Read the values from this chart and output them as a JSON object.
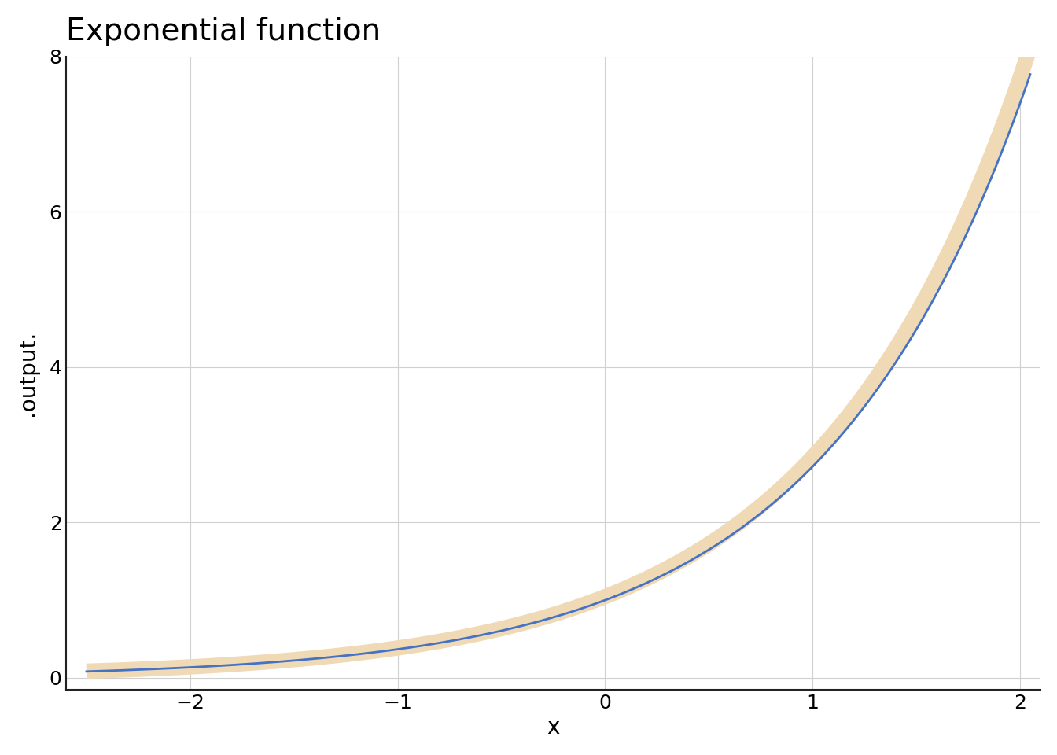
{
  "title": "Exponential function",
  "xlabel": "x",
  "ylabel": ".output.",
  "xlim": [
    -2.6,
    2.1
  ],
  "ylim": [
    -0.15,
    8.0
  ],
  "xticks": [
    -2,
    -1,
    0,
    1,
    2
  ],
  "yticks": [
    0,
    2,
    4,
    6,
    8
  ],
  "x_min": -2.5,
  "x_max": 2.05,
  "n_points": 500,
  "blue_color": "#4472C4",
  "tan_color": "#F0D9B5",
  "tan_linewidth": 14,
  "blue_linewidth": 2.0,
  "background_color": "#ffffff",
  "grid_color": "#d0d0d0",
  "title_fontsize": 28,
  "label_fontsize": 20,
  "tick_fontsize": 18
}
